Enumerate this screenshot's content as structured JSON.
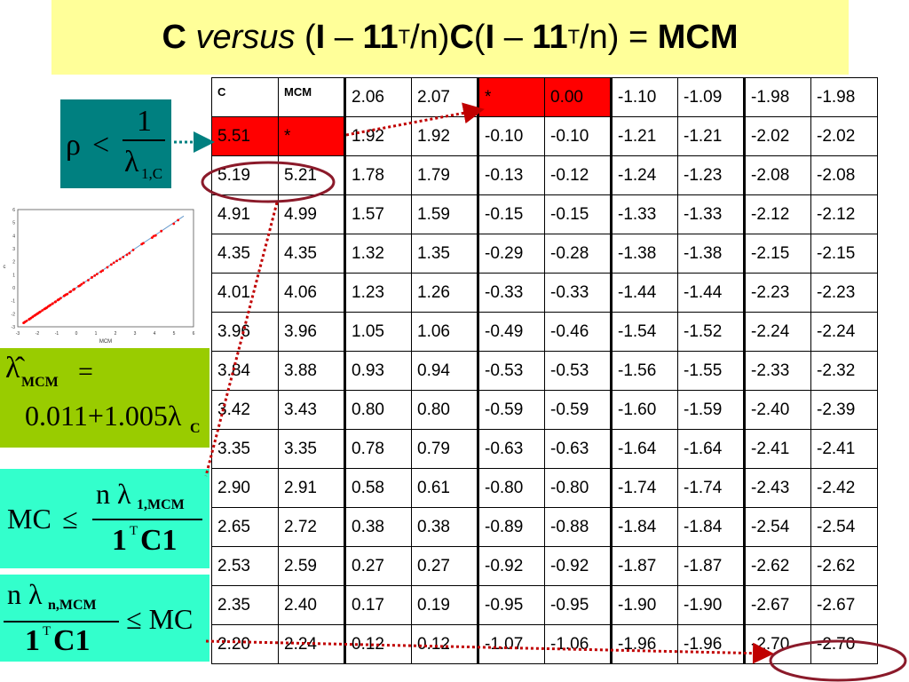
{
  "title": {
    "c1": "C",
    "versus": "versus",
    "paren_open": "(",
    "i1": "I",
    "dash1": "–",
    "ones1": "11",
    "sup1": "T",
    "over_n1": "/n)",
    "c2": "C",
    "paren_open2": "(",
    "i2": "I",
    "dash2": "–",
    "ones2": "11",
    "sup2": "T",
    "over_n2": "/n)",
    "equals": "=",
    "mcm": "MCM"
  },
  "table": {
    "header": [
      "C",
      "MCM"
    ],
    "rows": [
      [
        "",
        "",
        "2.06",
        "2.07",
        "*",
        "0.00",
        "-1.10",
        "-1.09",
        "-1.98",
        "-1.98"
      ],
      [
        "5.51",
        "*",
        "1.92",
        "1.92",
        "-0.10",
        "-0.10",
        "-1.21",
        "-1.21",
        "-2.02",
        "-2.02"
      ],
      [
        "5.19",
        "5.21",
        "1.78",
        "1.79",
        "-0.13",
        "-0.12",
        "-1.24",
        "-1.23",
        "-2.08",
        "-2.08"
      ],
      [
        "4.91",
        "4.99",
        "1.57",
        "1.59",
        "-0.15",
        "-0.15",
        "-1.33",
        "-1.33",
        "-2.12",
        "-2.12"
      ],
      [
        "4.35",
        "4.35",
        "1.32",
        "1.35",
        "-0.29",
        "-0.28",
        "-1.38",
        "-1.38",
        "-2.15",
        "-2.15"
      ],
      [
        "4.01",
        "4.06",
        "1.23",
        "1.26",
        "-0.33",
        "-0.33",
        "-1.44",
        "-1.44",
        "-2.23",
        "-2.23"
      ],
      [
        "3.96",
        "3.96",
        "1.05",
        "1.06",
        "-0.49",
        "-0.46",
        "-1.54",
        "-1.52",
        "-2.24",
        "-2.24"
      ],
      [
        "3.84",
        "3.88",
        "0.93",
        "0.94",
        "-0.53",
        "-0.53",
        "-1.56",
        "-1.55",
        "-2.33",
        "-2.32"
      ],
      [
        "3.42",
        "3.43",
        "0.80",
        "0.80",
        "-0.59",
        "-0.59",
        "-1.60",
        "-1.59",
        "-2.40",
        "-2.39"
      ],
      [
        "3.35",
        "3.35",
        "0.78",
        "0.79",
        "-0.63",
        "-0.63",
        "-1.64",
        "-1.64",
        "-2.41",
        "-2.41"
      ],
      [
        "2.90",
        "2.91",
        "0.58",
        "0.61",
        "-0.80",
        "-0.80",
        "-1.74",
        "-1.74",
        "-2.43",
        "-2.42"
      ],
      [
        "2.65",
        "2.72",
        "0.38",
        "0.38",
        "-0.89",
        "-0.88",
        "-1.84",
        "-1.84",
        "-2.54",
        "-2.54"
      ],
      [
        "2.53",
        "2.59",
        "0.27",
        "0.27",
        "-0.92",
        "-0.92",
        "-1.87",
        "-1.87",
        "-2.62",
        "-2.62"
      ],
      [
        "2.35",
        "2.40",
        "0.17",
        "0.19",
        "-0.95",
        "-0.95",
        "-1.90",
        "-1.90",
        "-2.67",
        "-2.67"
      ],
      [
        "2.20",
        "2.24",
        "0.12",
        "0.12",
        "-1.07",
        "-1.06",
        "-1.96",
        "-1.96",
        "-2.70",
        "-2.70"
      ]
    ],
    "red_cells": [
      [
        1,
        0
      ],
      [
        1,
        1
      ],
      [
        0,
        4
      ],
      [
        0,
        5
      ]
    ],
    "highlight_color": "#ff0000"
  },
  "formulas": {
    "rho": {
      "rho": "ρ",
      "lt": "<",
      "num": "1",
      "den": "λ",
      "den_sub": "1,C",
      "bg": "#008080"
    },
    "lambda_hat": {
      "lam": "λ̂",
      "sub": "MCM",
      "eq": "=",
      "rhs": "0.011+1.005λ",
      "rhs_sub": "C",
      "bg": "#99cc00"
    },
    "mc_upper": {
      "lhs": "MC",
      "le": "≤",
      "num": "n λ",
      "num_sub": "1,MCM",
      "den1": "1",
      "den_sup": "T",
      "den2": "C1",
      "bg": "#33ffcc"
    },
    "mc_lower": {
      "num": "n λ",
      "num_sub": "n,MCM",
      "den1": "1",
      "den_sup": "T",
      "den2": "C1",
      "le": "≤ MC",
      "bg": "#33ffcc"
    }
  },
  "minichart": {
    "xlabel": "MCM",
    "ylabel": "c",
    "xticks": [
      "-3",
      "-2",
      "-1",
      "0",
      "1",
      "2",
      "3",
      "4",
      "5",
      "6"
    ],
    "yticks": [
      "6",
      "5",
      "4",
      "3",
      "2",
      "1",
      "0",
      "-1",
      "-2",
      "-3"
    ],
    "series_color": "#ff0000",
    "line_color": "#6699cc"
  }
}
